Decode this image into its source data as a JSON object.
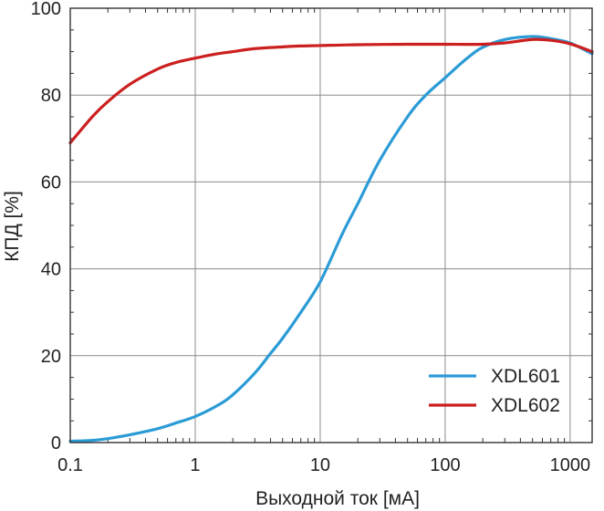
{
  "chart_data": {
    "type": "line",
    "xlabel": "Выходной ток [мА]",
    "ylabel": "КПД [%]",
    "x_scale": "log",
    "xlim": [
      0.1,
      1500
    ],
    "ylim": [
      0,
      100
    ],
    "x_ticks": [
      0.1,
      1,
      10,
      100,
      1000
    ],
    "x_tick_labels": [
      "0.1",
      "1",
      "10",
      "100",
      "1000"
    ],
    "y_ticks": [
      0,
      20,
      40,
      60,
      80,
      100
    ],
    "y_tick_labels": [
      "0",
      "20",
      "40",
      "60",
      "80",
      "100"
    ],
    "grid": true,
    "legend_position": "bottom-right",
    "series": [
      {
        "name": "XDL601",
        "color": "#2b9bd6",
        "x": [
          0.1,
          0.15,
          0.2,
          0.3,
          0.5,
          0.7,
          1,
          1.5,
          2,
          3,
          4,
          5,
          7,
          10,
          15,
          20,
          30,
          50,
          70,
          100,
          150,
          200,
          300,
          500,
          700,
          1000,
          1500
        ],
        "y": [
          0.3,
          0.5,
          0.9,
          1.8,
          3.2,
          4.5,
          6,
          8.5,
          11,
          16,
          20.5,
          24,
          30,
          37,
          48,
          55,
          65,
          75,
          80,
          84,
          88.5,
          91,
          92.8,
          93.5,
          93,
          92,
          89.5
        ]
      },
      {
        "name": "XDL602",
        "color": "#cc1f1f",
        "x": [
          0.1,
          0.15,
          0.2,
          0.3,
          0.5,
          0.7,
          1,
          1.5,
          2,
          3,
          5,
          7,
          10,
          20,
          50,
          100,
          200,
          300,
          500,
          700,
          1000,
          1500
        ],
        "y": [
          69,
          75,
          78.5,
          82.5,
          86,
          87.5,
          88.5,
          89.5,
          90,
          90.7,
          91.1,
          91.3,
          91.4,
          91.6,
          91.7,
          91.7,
          91.7,
          92,
          92.8,
          92.6,
          91.8,
          90
        ]
      }
    ]
  }
}
